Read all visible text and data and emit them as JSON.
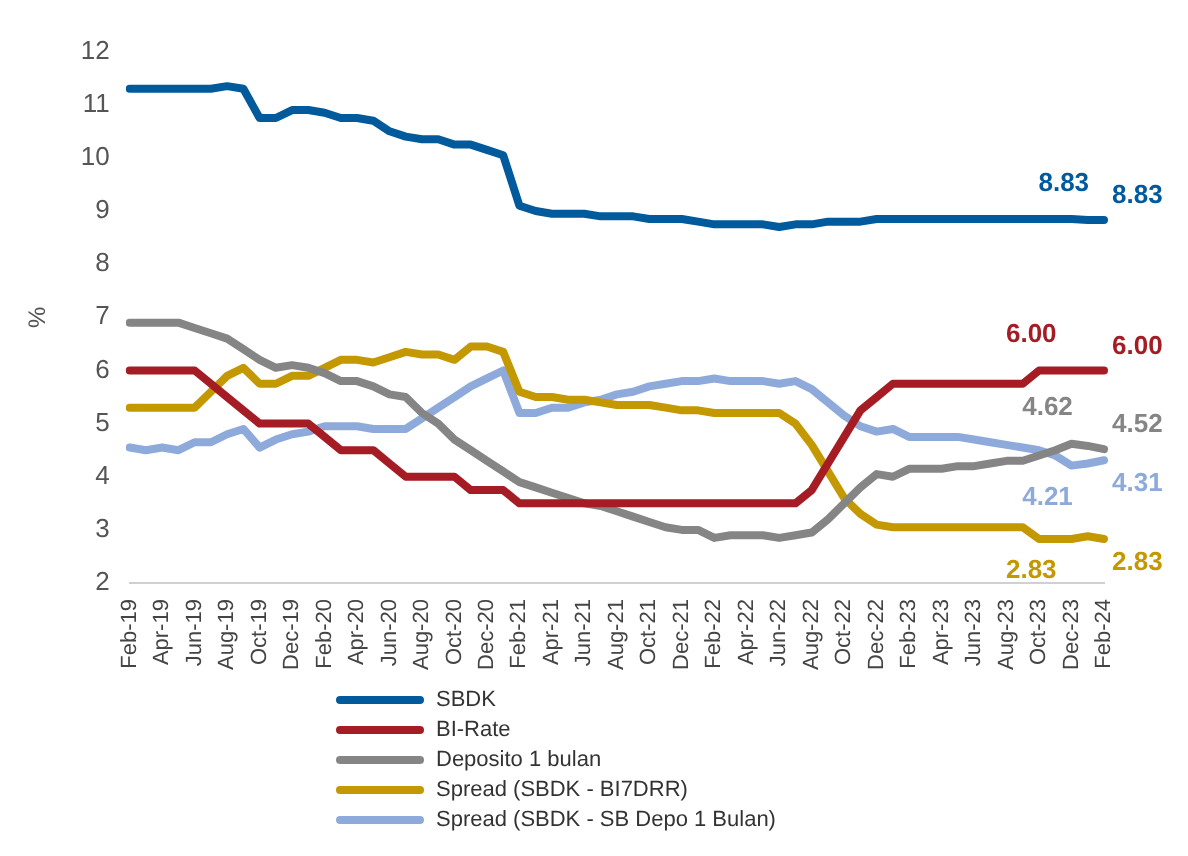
{
  "chart_data": {
    "type": "line",
    "ylabel": "%",
    "ylim": [
      2,
      12
    ],
    "yticks": [
      2,
      3,
      4,
      5,
      6,
      7,
      8,
      9,
      10,
      11,
      12
    ],
    "grid": false,
    "legend": "bottom",
    "marker": "none",
    "line_style": "solid",
    "categories": [
      "Feb-19",
      null,
      "Apr-19",
      null,
      "Jun-19",
      null,
      "Aug-19",
      null,
      "Oct-19",
      null,
      "Dec-19",
      null,
      "Feb-20",
      null,
      "Apr-20",
      null,
      "Jun-20",
      null,
      "Aug-20",
      null,
      "Oct-20",
      null,
      "Dec-20",
      null,
      "Feb-21",
      null,
      "Apr-21",
      null,
      "Jun-21",
      null,
      "Aug-21",
      null,
      "Oct-21",
      null,
      "Dec-21",
      null,
      "Feb-22",
      null,
      "Apr-22",
      null,
      "Jun-22",
      null,
      "Aug-22",
      null,
      "Oct-22",
      null,
      "Dec-22",
      null,
      "Feb-23",
      null,
      "Apr-23",
      null,
      "Jun-23",
      null,
      "Aug-23",
      null,
      "Oct-23",
      null,
      "Dec-23",
      null,
      "Feb-24"
    ],
    "series": [
      {
        "name": "SBDK",
        "color": "#005a9c",
        "values": [
          11.3,
          11.3,
          11.3,
          11.3,
          11.3,
          11.3,
          11.35,
          11.3,
          10.75,
          10.75,
          10.9,
          10.9,
          10.85,
          10.75,
          10.75,
          10.7,
          10.5,
          10.4,
          10.35,
          10.35,
          10.25,
          10.25,
          10.15,
          10.05,
          9.1,
          9.0,
          8.95,
          8.95,
          8.95,
          8.9,
          8.9,
          8.9,
          8.85,
          8.85,
          8.85,
          8.8,
          8.75,
          8.75,
          8.75,
          8.75,
          8.7,
          8.75,
          8.75,
          8.8,
          8.8,
          8.8,
          8.85,
          8.85,
          8.85,
          8.85,
          8.85,
          8.85,
          8.85,
          8.85,
          8.85,
          8.85,
          8.85,
          8.85,
          8.85,
          8.83,
          8.83
        ],
        "value_labels": [
          null,
          null,
          null,
          null,
          null,
          null,
          null,
          null,
          null,
          null,
          null,
          null,
          null,
          null,
          null,
          null,
          null,
          null,
          null,
          null,
          null,
          null,
          null,
          null,
          null,
          null,
          null,
          null,
          null,
          null,
          null,
          null,
          null,
          null,
          null,
          null,
          null,
          null,
          null,
          null,
          null,
          null,
          null,
          null,
          null,
          null,
          null,
          null,
          null,
          null,
          null,
          null,
          null,
          null,
          null,
          null,
          null,
          null,
          null,
          "8.83",
          "8.83"
        ]
      },
      {
        "name": "BI-Rate",
        "color": "#a51c24",
        "values": [
          6.0,
          6.0,
          6.0,
          6.0,
          6.0,
          5.75,
          5.5,
          5.25,
          5.0,
          5.0,
          5.0,
          5.0,
          4.75,
          4.5,
          4.5,
          4.5,
          4.25,
          4.0,
          4.0,
          4.0,
          4.0,
          3.75,
          3.75,
          3.75,
          3.5,
          3.5,
          3.5,
          3.5,
          3.5,
          3.5,
          3.5,
          3.5,
          3.5,
          3.5,
          3.5,
          3.5,
          3.5,
          3.5,
          3.5,
          3.5,
          3.5,
          3.5,
          3.75,
          4.25,
          4.75,
          5.25,
          5.5,
          5.75,
          5.75,
          5.75,
          5.75,
          5.75,
          5.75,
          5.75,
          5.75,
          5.75,
          6.0,
          6.0,
          6.0,
          6.0,
          6.0
        ],
        "value_labels": [
          null,
          null,
          null,
          null,
          null,
          null,
          null,
          null,
          null,
          null,
          null,
          null,
          null,
          null,
          null,
          null,
          null,
          null,
          null,
          null,
          null,
          null,
          null,
          null,
          null,
          null,
          null,
          null,
          null,
          null,
          null,
          null,
          null,
          null,
          null,
          null,
          null,
          null,
          null,
          null,
          null,
          null,
          null,
          null,
          null,
          null,
          null,
          null,
          null,
          null,
          null,
          null,
          null,
          null,
          null,
          null,
          null,
          "6.00",
          null,
          null,
          "6.00"
        ]
      },
      {
        "name": "Deposito 1 bulan",
        "color": "#858585",
        "values": [
          6.9,
          6.9,
          6.9,
          6.9,
          6.8,
          6.7,
          6.6,
          6.4,
          6.2,
          6.05,
          6.1,
          6.05,
          5.95,
          5.8,
          5.8,
          5.7,
          5.55,
          5.5,
          5.2,
          5.0,
          4.7,
          4.5,
          4.3,
          4.1,
          3.9,
          3.8,
          3.7,
          3.6,
          3.5,
          3.45,
          3.35,
          3.25,
          3.15,
          3.05,
          3.0,
          3.0,
          2.85,
          2.9,
          2.9,
          2.9,
          2.85,
          2.9,
          2.95,
          3.2,
          3.5,
          3.8,
          4.05,
          4.0,
          4.15,
          4.15,
          4.15,
          4.2,
          4.2,
          4.25,
          4.3,
          4.3,
          4.4,
          4.5,
          4.62,
          4.58,
          4.52
        ],
        "value_labels": [
          null,
          null,
          null,
          null,
          null,
          null,
          null,
          null,
          null,
          null,
          null,
          null,
          null,
          null,
          null,
          null,
          null,
          null,
          null,
          null,
          null,
          null,
          null,
          null,
          null,
          null,
          null,
          null,
          null,
          null,
          null,
          null,
          null,
          null,
          null,
          null,
          null,
          null,
          null,
          null,
          null,
          null,
          null,
          null,
          null,
          null,
          null,
          null,
          null,
          null,
          null,
          null,
          null,
          null,
          null,
          null,
          null,
          null,
          "4.62",
          null,
          "4.52"
        ]
      },
      {
        "name": "Spread (SBDK - BI7DRR)",
        "color": "#c49800",
        "values": [
          5.3,
          5.3,
          5.3,
          5.3,
          5.3,
          5.6,
          5.9,
          6.05,
          5.75,
          5.75,
          5.9,
          5.9,
          6.05,
          6.2,
          6.2,
          6.15,
          6.25,
          6.35,
          6.3,
          6.3,
          6.2,
          6.45,
          6.45,
          6.35,
          5.6,
          5.5,
          5.5,
          5.45,
          5.45,
          5.4,
          5.35,
          5.35,
          5.35,
          5.3,
          5.25,
          5.25,
          5.2,
          5.2,
          5.2,
          5.2,
          5.2,
          5.0,
          4.6,
          4.1,
          3.6,
          3.3,
          3.1,
          3.05,
          3.05,
          3.05,
          3.05,
          3.05,
          3.05,
          3.05,
          3.05,
          3.05,
          2.83,
          2.83,
          2.83,
          2.88,
          2.83
        ],
        "value_labels": [
          null,
          null,
          null,
          null,
          null,
          null,
          null,
          null,
          null,
          null,
          null,
          null,
          null,
          null,
          null,
          null,
          null,
          null,
          null,
          null,
          null,
          null,
          null,
          null,
          null,
          null,
          null,
          null,
          null,
          null,
          null,
          null,
          null,
          null,
          null,
          null,
          null,
          null,
          null,
          null,
          null,
          null,
          null,
          null,
          null,
          null,
          null,
          null,
          null,
          null,
          null,
          null,
          null,
          null,
          null,
          null,
          null,
          "2.83",
          null,
          null,
          "2.83"
        ]
      },
      {
        "name": "Spread (SBDK - SB Depo 1 Bulan)",
        "color": "#8eaadb",
        "values": [
          4.55,
          4.5,
          4.55,
          4.5,
          4.65,
          4.65,
          4.8,
          4.9,
          4.55,
          4.7,
          4.8,
          4.85,
          4.95,
          4.95,
          4.95,
          4.9,
          4.9,
          4.9,
          5.1,
          5.3,
          5.5,
          5.7,
          5.85,
          6.0,
          5.2,
          5.2,
          5.3,
          5.3,
          5.4,
          5.45,
          5.55,
          5.6,
          5.7,
          5.75,
          5.8,
          5.8,
          5.85,
          5.8,
          5.8,
          5.8,
          5.75,
          5.8,
          5.65,
          5.4,
          5.15,
          4.95,
          4.85,
          4.9,
          4.75,
          4.75,
          4.75,
          4.75,
          4.7,
          4.65,
          4.6,
          4.55,
          4.5,
          4.4,
          4.21,
          4.25,
          4.31
        ],
        "value_labels": [
          null,
          null,
          null,
          null,
          null,
          null,
          null,
          null,
          null,
          null,
          null,
          null,
          null,
          null,
          null,
          null,
          null,
          null,
          null,
          null,
          null,
          null,
          null,
          null,
          null,
          null,
          null,
          null,
          null,
          null,
          null,
          null,
          null,
          null,
          null,
          null,
          null,
          null,
          null,
          null,
          null,
          null,
          null,
          null,
          null,
          null,
          null,
          null,
          null,
          null,
          null,
          null,
          null,
          null,
          null,
          null,
          null,
          null,
          "4.21",
          null,
          "4.31"
        ]
      }
    ]
  }
}
